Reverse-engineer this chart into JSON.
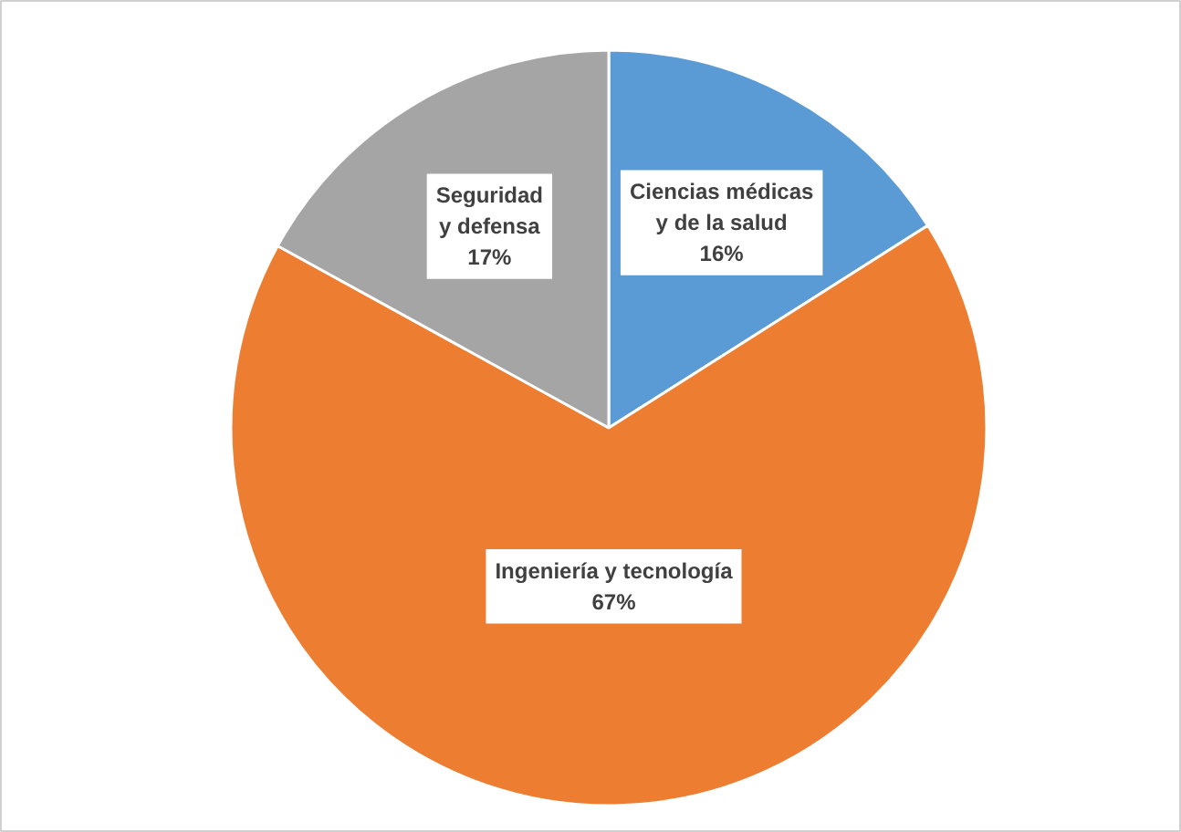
{
  "chart_data": {
    "type": "pie",
    "categories": [
      "Ciencias médicas y de la salud",
      "Ingeniería y tecnología",
      "Seguridad y defensa"
    ],
    "values": [
      16,
      67,
      17
    ],
    "colors": [
      "#5b9bd5",
      "#ed7d31",
      "#a5a5a5"
    ],
    "value_labels": [
      "16%",
      "67%",
      "17%"
    ]
  }
}
